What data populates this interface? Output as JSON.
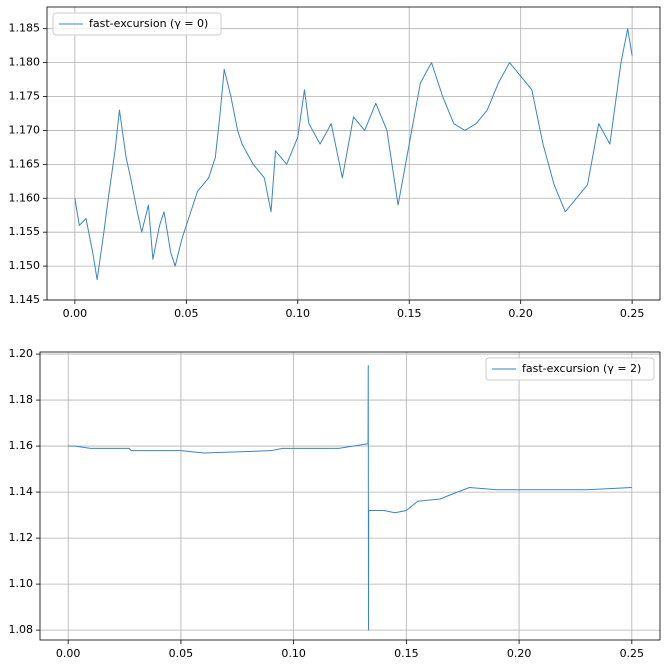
{
  "chart_data": [
    {
      "type": "line",
      "grid": true,
      "legend": "upper left",
      "xlim": [
        -0.0125,
        0.2625
      ],
      "ylim": [
        1.145,
        1.1882
      ],
      "xticks": [
        {
          "value": 0,
          "label": "0.00"
        },
        {
          "value": 0.05,
          "label": "0.05"
        },
        {
          "value": 0.1,
          "label": "0.10"
        },
        {
          "value": 0.15,
          "label": "0.15"
        },
        {
          "value": 0.2,
          "label": "0.20"
        },
        {
          "value": 0.25,
          "label": "0.25"
        }
      ],
      "yticks": [
        1.145,
        {
          "value": 1.15,
          "label": "1.150"
        },
        1.155,
        {
          "value": 1.16,
          "label": "1.160"
        },
        1.165,
        {
          "value": 1.17,
          "label": "1.170"
        },
        1.175,
        {
          "value": 1.18,
          "label": "1.180"
        },
        1.185
      ],
      "x": [
        0,
        0.002,
        0.005,
        0.008,
        0.01,
        0.013,
        0.015,
        0.018,
        0.02,
        0.023,
        0.025,
        0.028,
        0.03,
        0.033,
        0.035,
        0.038,
        0.04,
        0.043,
        0.045,
        0.048,
        0.05,
        0.055,
        0.06,
        0.063,
        0.065,
        0.067,
        0.07,
        0.073,
        0.075,
        0.08,
        0.085,
        0.088,
        0.09,
        0.095,
        0.1,
        0.103,
        0.105,
        0.11,
        0.115,
        0.12,
        0.125,
        0.13,
        0.135,
        0.14,
        0.145,
        0.15,
        0.155,
        0.16,
        0.165,
        0.17,
        0.175,
        0.18,
        0.185,
        0.19,
        0.195,
        0.2,
        0.205,
        0.21,
        0.215,
        0.22,
        0.225,
        0.23,
        0.235,
        0.24,
        0.245,
        0.248,
        0.25
      ],
      "series": [
        {
          "name": "fast-excursion (γ = 0)",
          "color": "#3a86c0",
          "values": [
            1.16,
            1.156,
            1.157,
            1.152,
            1.148,
            1.155,
            1.16,
            1.167,
            1.173,
            1.166,
            1.163,
            1.158,
            1.155,
            1.159,
            1.151,
            1.156,
            1.158,
            1.152,
            1.15,
            1.154,
            1.156,
            1.161,
            1.163,
            1.166,
            1.172,
            1.179,
            1.175,
            1.17,
            1.168,
            1.165,
            1.163,
            1.158,
            1.167,
            1.165,
            1.169,
            1.176,
            1.171,
            1.168,
            1.171,
            1.163,
            1.172,
            1.17,
            1.174,
            1.17,
            1.159,
            1.168,
            1.177,
            1.18,
            1.175,
            1.171,
            1.17,
            1.171,
            1.173,
            1.177,
            1.18,
            1.178,
            1.176,
            1.168,
            1.162,
            1.158,
            1.16,
            1.162,
            1.171,
            1.168,
            1.18,
            1.185,
            1.181
          ]
        }
      ]
    },
    {
      "type": "line",
      "grid": true,
      "legend": "upper right",
      "xlim": [
        -0.0125,
        0.2625
      ],
      "ylim": [
        1.0757,
        1.2009
      ],
      "xticks": [
        {
          "value": 0,
          "label": "0.00"
        },
        {
          "value": 0.05,
          "label": "0.05"
        },
        {
          "value": 0.1,
          "label": "0.10"
        },
        {
          "value": 0.15,
          "label": "0.15"
        },
        {
          "value": 0.2,
          "label": "0.20"
        },
        {
          "value": 0.25,
          "label": "0.25"
        }
      ],
      "yticks": [
        1.08,
        {
          "value": 1.1,
          "label": "1.10"
        },
        1.12,
        1.14,
        1.16,
        1.18,
        {
          "value": 1.2,
          "label": "1.20"
        }
      ],
      "x": [
        0,
        0.003,
        0.01,
        0.027,
        0.028,
        0.05,
        0.06,
        0.09,
        0.095,
        0.12,
        0.133,
        0.1331,
        0.1332,
        0.1333,
        0.14,
        0.145,
        0.15,
        0.155,
        0.165,
        0.17,
        0.178,
        0.19,
        0.2,
        0.23,
        0.25
      ],
      "series": [
        {
          "name": "fast-excursion (γ = 2)",
          "color": "#3a86c0",
          "values": [
            1.16,
            1.16,
            1.159,
            1.159,
            1.158,
            1.158,
            1.157,
            1.158,
            1.159,
            1.159,
            1.161,
            1.195,
            1.08,
            1.132,
            1.132,
            1.131,
            1.132,
            1.136,
            1.137,
            1.139,
            1.142,
            1.141,
            1.141,
            1.141,
            1.142
          ]
        }
      ]
    }
  ]
}
